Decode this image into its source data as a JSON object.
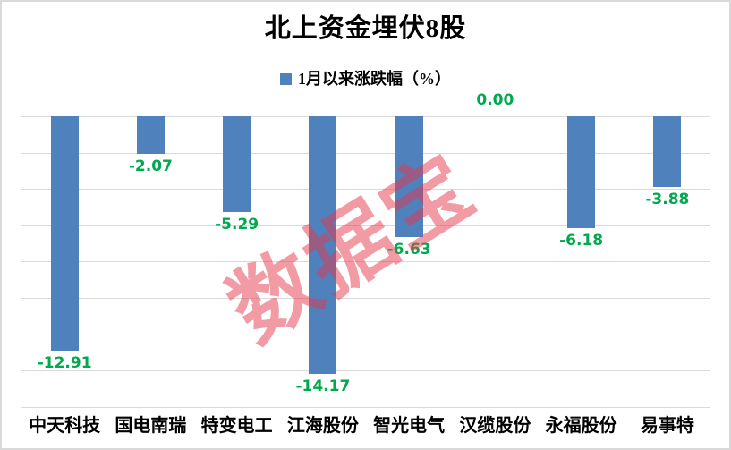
{
  "chart_data": {
    "type": "bar",
    "title": "北上资金埋伏8股",
    "legend": "1月以来涨跌幅（%）",
    "legend_position": "top-center",
    "categories": [
      "中天科技",
      "国电南瑞",
      "特变电工",
      "江海股份",
      "智光电气",
      "汉缆股份",
      "永福股份",
      "易事特"
    ],
    "values": [
      -12.91,
      -2.07,
      -5.29,
      -14.17,
      -6.63,
      0.0,
      -6.18,
      -3.88
    ],
    "value_labels": [
      "-12.91",
      "-2.07",
      "-5.29",
      "-14.17",
      "-6.63",
      "0.00",
      "-6.18",
      "-3.88"
    ],
    "xlabel": "",
    "ylabel": "",
    "ylim": [
      -16,
      0
    ],
    "gridline_step": 2,
    "grid": true,
    "axis_tick_labels_visible": false
  },
  "watermark": {
    "text": "数据宝"
  },
  "colors": {
    "bar": "#4f81bd",
    "value_label": "#00a84e",
    "gridline": "#d9d9d9",
    "border": "#d9d9d9",
    "title": "#000000",
    "background": "#ffffff",
    "watermark": "rgba(230,55,75,0.5)"
  }
}
